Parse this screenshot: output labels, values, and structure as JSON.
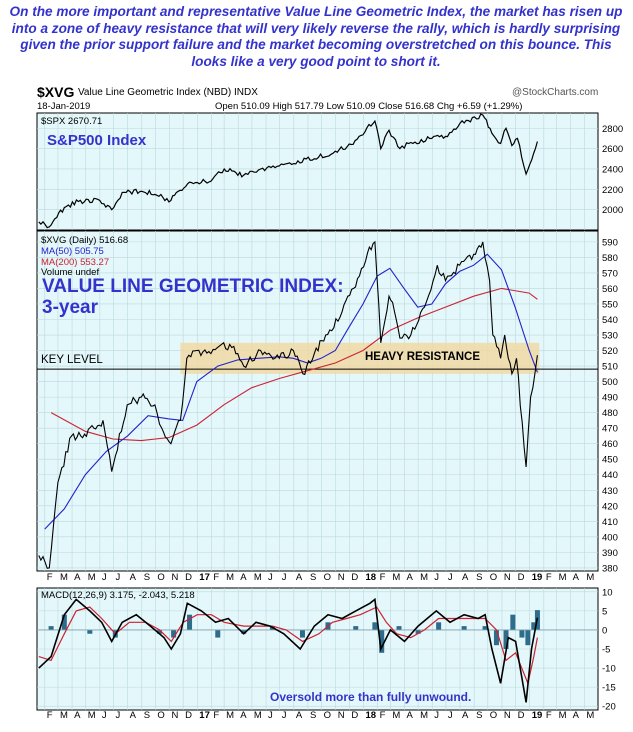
{
  "caption": "On the more important and representative Value Line Geometric Index, the market has risen up into a zone of heavy resistance that will very likely reverse the rally, which is hardly surprising given the prior support failure and the market becoming overstretched on this bounce. This looks like a very good point to short it.",
  "header": {
    "symbol": "$XVG",
    "name": "Value Line Geometric Index (NBD) INDX",
    "watermark": "@StockCharts.com",
    "date": "18-Jan-2019",
    "ohlc": "Open 510.09   High 517.79   Low 510.09   Close 516.68   Chg +6.59 (+1.29%)"
  },
  "colors": {
    "panel_bg": "#e4f7fa",
    "price": "#000000",
    "ma50": "#2222cc",
    "ma200": "#cc2233",
    "caption": "#3333cc",
    "resistance": "#f0d9a4"
  },
  "chart_data": [
    {
      "type": "line",
      "legend": "$SPX 2670.71",
      "title": "S&P500 Index",
      "ylim": [
        1800,
        2950
      ],
      "yticks": [
        2000,
        2200,
        2400,
        2600,
        2800
      ],
      "x": [
        "2016-01-19",
        "2016-02-11",
        "2016-03-15",
        "2016-04-15",
        "2016-06-01",
        "2016-06-27",
        "2016-07-20",
        "2016-09-01",
        "2016-09-30",
        "2016-11-04",
        "2016-11-20",
        "2016-12-15",
        "2017-01-31",
        "2017-03-01",
        "2017-04-13",
        "2017-05-20",
        "2017-06-30",
        "2017-08-10",
        "2017-09-15",
        "2017-10-31",
        "2017-12-05",
        "2018-01-26",
        "2018-02-08",
        "2018-02-26",
        "2018-03-22",
        "2018-04-15",
        "2018-05-31",
        "2018-06-30",
        "2018-08-01",
        "2018-09-20",
        "2018-10-10",
        "2018-10-29",
        "2018-11-10",
        "2018-11-23",
        "2018-12-05",
        "2018-12-24",
        "2019-01-18"
      ],
      "y": [
        1880,
        1830,
        2020,
        2080,
        2090,
        2000,
        2170,
        2180,
        2150,
        2090,
        2180,
        2270,
        2280,
        2400,
        2340,
        2400,
        2430,
        2480,
        2500,
        2575,
        2640,
        2870,
        2600,
        2780,
        2600,
        2660,
        2700,
        2720,
        2850,
        2930,
        2750,
        2650,
        2800,
        2630,
        2700,
        2350,
        2670
      ]
    },
    {
      "type": "line",
      "legend": [
        "$XVG (Daily) 516.68",
        "MA(50) 505.75",
        "MA(200) 553.27",
        "Volume undef"
      ],
      "title": "VALUE LINE GEOMETRIC INDEX:",
      "subtitle": "3-year",
      "ylim": [
        378,
        597
      ],
      "yticks": [
        380,
        390,
        400,
        410,
        420,
        430,
        440,
        450,
        460,
        470,
        480,
        490,
        500,
        510,
        520,
        530,
        540,
        550,
        560,
        570,
        580,
        590
      ],
      "annotations": [
        "KEY LEVEL",
        "HEAVY RESISTANCE"
      ],
      "key_level": 508,
      "resistance_zone": [
        505,
        525
      ],
      "series": [
        {
          "name": "$XVG (Daily)",
          "x": [
            "2016-01-19",
            "2016-02-11",
            "2016-03-01",
            "2016-03-31",
            "2016-04-20",
            "2016-05-19",
            "2016-06-08",
            "2016-06-27",
            "2016-07-31",
            "2016-08-31",
            "2016-09-30",
            "2016-10-15",
            "2016-11-04",
            "2016-11-25",
            "2016-12-09",
            "2016-12-31",
            "2017-01-31",
            "2017-02-28",
            "2017-03-31",
            "2017-04-13",
            "2017-05-20",
            "2017-06-30",
            "2017-07-31",
            "2017-08-21",
            "2017-09-15",
            "2017-10-10",
            "2017-11-15",
            "2017-12-10",
            "2018-01-10",
            "2018-01-26",
            "2018-02-08",
            "2018-02-26",
            "2018-03-10",
            "2018-03-22",
            "2018-04-15",
            "2018-05-15",
            "2018-06-12",
            "2018-06-30",
            "2018-07-31",
            "2018-08-31",
            "2018-09-20",
            "2018-10-05",
            "2018-10-12",
            "2018-10-29",
            "2018-11-07",
            "2018-11-23",
            "2018-12-03",
            "2018-12-24",
            "2019-01-03",
            "2019-01-18"
          ],
          "y": [
            388,
            380,
            435,
            465,
            465,
            470,
            475,
            442,
            485,
            490,
            485,
            470,
            460,
            475,
            515,
            520,
            518,
            525,
            518,
            510,
            520,
            515,
            520,
            505,
            518,
            530,
            545,
            560,
            583,
            590,
            525,
            555,
            545,
            528,
            530,
            548,
            575,
            565,
            575,
            582,
            590,
            565,
            530,
            515,
            530,
            505,
            515,
            445,
            490,
            517
          ]
        },
        {
          "name": "MA(50)",
          "x": [
            "2016-02-01",
            "2016-03-15",
            "2016-04-30",
            "2016-06-15",
            "2016-08-01",
            "2016-09-15",
            "2016-10-31",
            "2016-11-30",
            "2016-12-31",
            "2017-02-15",
            "2017-03-31",
            "2017-05-15",
            "2017-06-30",
            "2017-07-31",
            "2017-08-31",
            "2017-09-30",
            "2017-10-31",
            "2017-11-30",
            "2017-12-31",
            "2018-01-31",
            "2018-02-28",
            "2018-03-31",
            "2018-04-30",
            "2018-05-31",
            "2018-06-30",
            "2018-07-31",
            "2018-08-31",
            "2018-09-30",
            "2018-10-31",
            "2018-11-30",
            "2018-12-31",
            "2019-01-18"
          ],
          "y": [
            405,
            418,
            440,
            455,
            465,
            478,
            476,
            475,
            500,
            510,
            514,
            515,
            516,
            515,
            512,
            515,
            520,
            535,
            550,
            568,
            573,
            560,
            548,
            550,
            563,
            571,
            575,
            582,
            572,
            548,
            520,
            506
          ]
        },
        {
          "name": "MA(200)",
          "x": [
            "2016-02-15",
            "2016-04-30",
            "2016-06-30",
            "2016-08-31",
            "2016-10-31",
            "2016-12-31",
            "2017-02-28",
            "2017-04-30",
            "2017-06-30",
            "2017-08-31",
            "2017-10-31",
            "2017-12-31",
            "2018-02-28",
            "2018-04-30",
            "2018-06-30",
            "2018-08-31",
            "2018-10-31",
            "2018-12-31",
            "2019-01-18"
          ],
          "y": [
            480,
            468,
            463,
            462,
            464,
            472,
            485,
            496,
            502,
            507,
            512,
            520,
            533,
            541,
            548,
            555,
            560,
            557,
            553
          ]
        }
      ],
      "x_ticks": [
        "F",
        "M",
        "A",
        "M",
        "J",
        "J",
        "A",
        "S",
        "O",
        "N",
        "D",
        "17",
        "F",
        "M",
        "A",
        "M",
        "J",
        "J",
        "A",
        "S",
        "O",
        "N",
        "D",
        "18",
        "F",
        "M",
        "A",
        "M",
        "J",
        "J",
        "A",
        "S",
        "O",
        "N",
        "D",
        "19",
        "F",
        "M",
        "A",
        "M"
      ]
    },
    {
      "type": "line",
      "legend": "MACD(12,26,9) 3.175, -2.043, 5.218",
      "annotation": "Oversold more than fully unwound.",
      "ylim": [
        -21,
        11
      ],
      "yticks": [
        10,
        5,
        0,
        -5,
        -10,
        -15,
        -20
      ],
      "x_ticks": [
        "F",
        "M",
        "A",
        "M",
        "J",
        "J",
        "A",
        "S",
        "O",
        "N",
        "D",
        "17",
        "F",
        "M",
        "A",
        "M",
        "J",
        "J",
        "A",
        "S",
        "O",
        "N",
        "D",
        "18",
        "F",
        "M",
        "A",
        "M",
        "J",
        "J",
        "A",
        "S",
        "O",
        "N",
        "D",
        "19",
        "F",
        "M",
        "A",
        "M"
      ],
      "series": [
        {
          "name": "MACD",
          "x": [
            "2016-01-19",
            "2016-02-15",
            "2016-03-15",
            "2016-04-10",
            "2016-05-10",
            "2016-06-05",
            "2016-06-27",
            "2016-07-20",
            "2016-08-20",
            "2016-09-20",
            "2016-10-20",
            "2016-11-05",
            "2016-11-25",
            "2016-12-10",
            "2017-01-10",
            "2017-02-10",
            "2017-03-10",
            "2017-04-13",
            "2017-05-10",
            "2017-06-10",
            "2017-07-10",
            "2017-08-15",
            "2017-09-15",
            "2017-10-15",
            "2017-11-15",
            "2017-12-15",
            "2018-01-15",
            "2018-01-26",
            "2018-02-08",
            "2018-03-01",
            "2018-04-01",
            "2018-05-01",
            "2018-06-10",
            "2018-07-10",
            "2018-08-10",
            "2018-09-10",
            "2018-09-25",
            "2018-10-10",
            "2018-10-29",
            "2018-11-15",
            "2018-12-01",
            "2018-12-24",
            "2019-01-05",
            "2019-01-18"
          ],
          "y": [
            -10,
            -7,
            4,
            8,
            5,
            2,
            -3,
            2,
            4,
            1,
            -2,
            -5,
            -1,
            7,
            5,
            2,
            3,
            -1,
            2,
            1,
            -1,
            -5,
            1,
            4,
            3,
            5,
            7,
            8,
            -5,
            0,
            -3,
            1,
            5,
            2,
            4,
            3,
            4,
            -5,
            -14,
            -2,
            -3,
            -19,
            -5,
            3.2
          ]
        },
        {
          "name": "Signal",
          "x": [
            "2016-01-19",
            "2016-02-15",
            "2016-03-15",
            "2016-04-10",
            "2016-05-10",
            "2016-06-05",
            "2016-07-05",
            "2016-08-05",
            "2016-09-10",
            "2016-10-10",
            "2016-11-05",
            "2016-12-01",
            "2017-01-01",
            "2017-02-01",
            "2017-03-01",
            "2017-04-13",
            "2017-05-15",
            "2017-06-15",
            "2017-07-15",
            "2017-08-20",
            "2017-09-25",
            "2017-10-25",
            "2017-11-25",
            "2017-12-25",
            "2018-01-30",
            "2018-02-20",
            "2018-03-15",
            "2018-04-15",
            "2018-05-15",
            "2018-06-15",
            "2018-07-20",
            "2018-08-20",
            "2018-09-25",
            "2018-10-20",
            "2018-11-10",
            "2018-12-01",
            "2018-12-28",
            "2019-01-10",
            "2019-01-18"
          ],
          "y": [
            -7,
            -8,
            -1,
            5,
            6,
            3,
            -1,
            2,
            2,
            0,
            -3,
            2,
            4,
            4,
            2,
            1,
            1,
            1,
            0,
            -3,
            -1,
            2,
            3,
            4,
            6,
            2,
            -1,
            -2,
            0,
            3,
            3,
            3,
            3,
            0,
            -8,
            -6,
            -14,
            -7,
            -2
          ]
        },
        {
          "name": "Histogram",
          "x": [
            "2016-02-15",
            "2016-03-15",
            "2016-05-10",
            "2016-07-05",
            "2016-10-10",
            "2016-11-10",
            "2016-12-15",
            "2017-02-15",
            "2017-04-13",
            "2017-06-15",
            "2017-08-20",
            "2017-10-15",
            "2017-12-15",
            "2018-01-26",
            "2018-02-10",
            "2018-03-20",
            "2018-05-01",
            "2018-06-15",
            "2018-08-10",
            "2018-09-25",
            "2018-10-20",
            "2018-11-10",
            "2018-11-25",
            "2018-12-15",
            "2018-12-28",
            "2019-01-10",
            "2019-01-18"
          ],
          "y": [
            1,
            4,
            -1,
            -2,
            -1,
            -2,
            4,
            -2,
            -1,
            1,
            -2,
            2,
            1,
            2,
            -6,
            1,
            -1,
            2,
            1,
            1,
            -4,
            -5,
            4,
            -2,
            -4,
            2,
            5.2
          ]
        }
      ]
    }
  ]
}
